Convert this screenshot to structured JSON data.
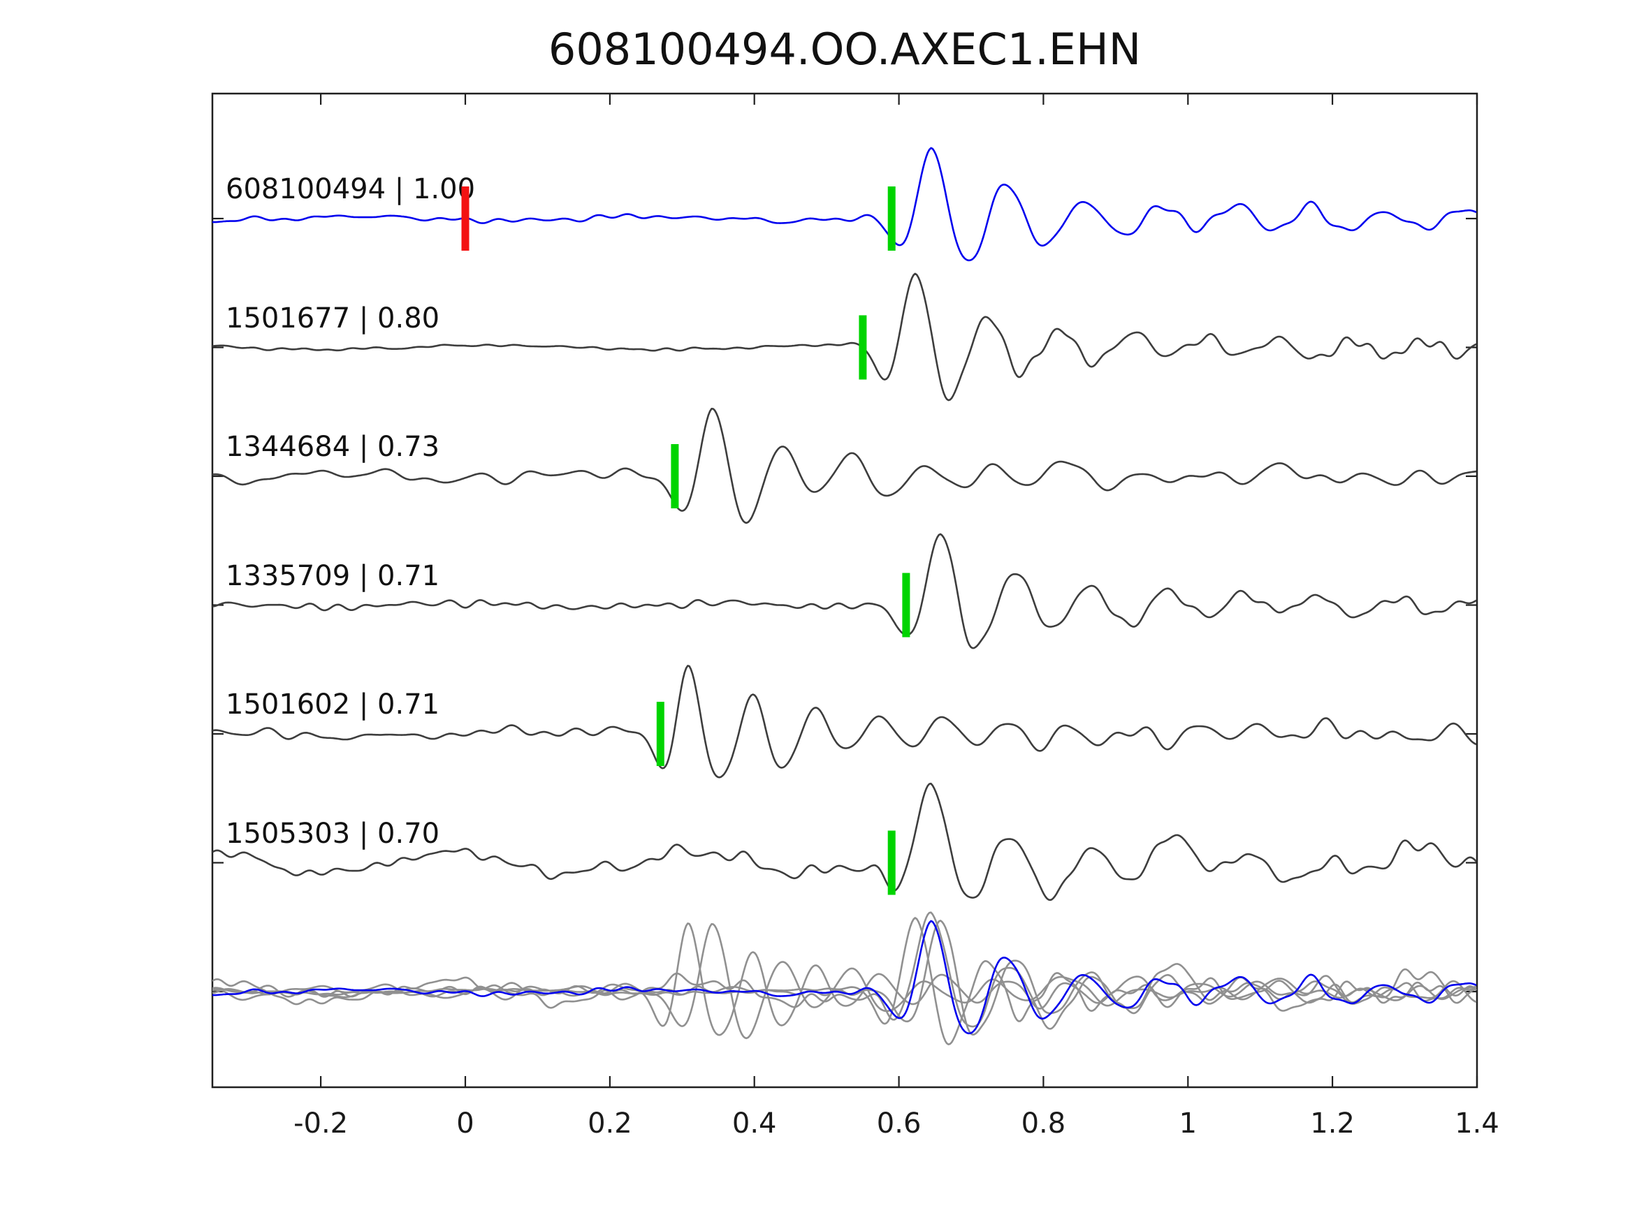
{
  "title": "608100494.OO.AXEC1.EHN",
  "colors": {
    "target_trace": "#0202ee",
    "template_trace": "#3d3d3d",
    "overlay_gray": "#909090",
    "pick_marker": "#00d400",
    "origin_marker": "#f31212",
    "axis": "#1f1f1f"
  },
  "chart_data": {
    "type": "line",
    "title": "608100494.OO.AXEC1.EHN",
    "xlabel": "",
    "ylabel": "",
    "xlim": [
      -0.35,
      1.4
    ],
    "grid": false,
    "x_ticks": {
      "values": [
        -0.2,
        0,
        0.2,
        0.4,
        0.6,
        0.8,
        1,
        1.2,
        1.4
      ],
      "labels": [
        "-0.2",
        "0",
        "0.2",
        "0.4",
        "0.6",
        "0.8",
        "1",
        "1.2",
        "1.4"
      ]
    },
    "traces": [
      {
        "id": "608100494",
        "cc": "1.00",
        "display": "608100494 | 1.00",
        "color_role": "target_trace",
        "pick_time": 0.59,
        "origin_time": 0.0,
        "shape": {
          "peak": 0.645,
          "amp": 100,
          "period": 0.105,
          "noise_pre": 5.5,
          "noise_post": 13,
          "lf_amp": 3,
          "seed": 7
        }
      },
      {
        "id": "1501677",
        "cc": "0.80",
        "display": "1501677 | 0.80",
        "color_role": "template_trace",
        "pick_time": 0.55,
        "shape": {
          "peak": 0.623,
          "amp": 108,
          "period": 0.1,
          "noise_pre": 3,
          "noise_post": 15,
          "lf_amp": 3,
          "seed": 12
        }
      },
      {
        "id": "1344684",
        "cc": "0.73",
        "display": "1344684 | 0.73",
        "color_role": "template_trace",
        "pick_time": 0.29,
        "shape": {
          "peak": 0.341,
          "amp": 100,
          "period": 0.098,
          "noise_pre": 10,
          "noise_post": 14,
          "lf_amp": 5,
          "seed": 23
        }
      },
      {
        "id": "1335709",
        "cc": "0.71",
        "display": "1335709 | 0.71",
        "color_role": "template_trace",
        "pick_time": 0.61,
        "shape": {
          "peak": 0.657,
          "amp": 100,
          "period": 0.105,
          "noise_pre": 6.5,
          "noise_post": 13,
          "lf_amp": 3,
          "seed": 31
        }
      },
      {
        "id": "1501602",
        "cc": "0.71",
        "display": "1501602 | 0.71",
        "color_role": "template_trace",
        "pick_time": 0.27,
        "shape": {
          "peak": 0.309,
          "amp": 100,
          "period": 0.088,
          "noise_pre": 10,
          "noise_post": 13,
          "lf_amp": 4,
          "seed": 47
        }
      },
      {
        "id": "1505303",
        "cc": "0.70",
        "display": "1505303 | 0.70",
        "color_role": "template_trace",
        "pick_time": 0.59,
        "shape": {
          "peak": 0.644,
          "amp": 100,
          "period": 0.112,
          "noise_pre": 12,
          "noise_post": 16,
          "lf_amp": 15,
          "seed": 5
        }
      }
    ],
    "overlay_row": {
      "traces_included": [
        "608100494",
        "1501677",
        "1344684",
        "1335709",
        "1501602",
        "1505303"
      ],
      "highlight_trace": "608100494"
    }
  }
}
